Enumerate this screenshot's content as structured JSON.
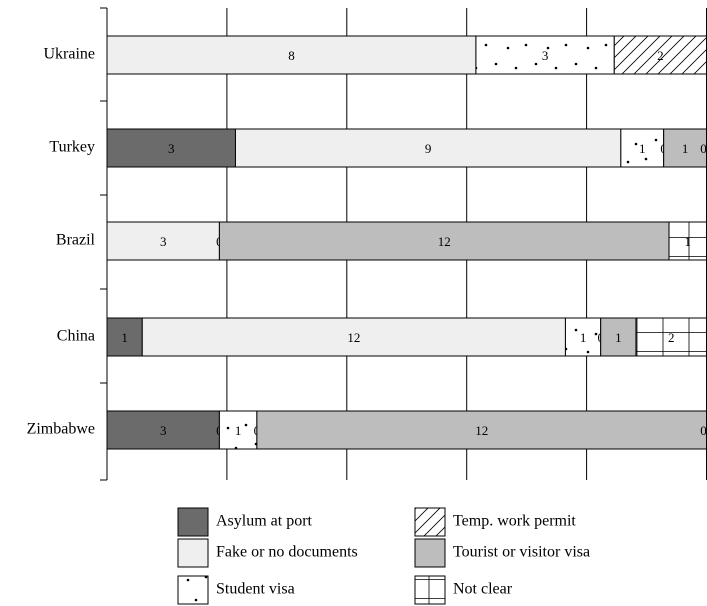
{
  "chart_data": {
    "type": "stacked_bar_horizontal_percent",
    "categories": [
      "Ukraine",
      "Turkey",
      "Brazil",
      "China",
      "Zimbabwe"
    ],
    "series": [
      {
        "name": "Asylum at port",
        "color": "#6b6b6b",
        "pattern": "solid",
        "values": [
          0,
          3,
          0,
          1,
          3
        ]
      },
      {
        "name": "Fake or no documents",
        "color": "#efefef",
        "pattern": "solid",
        "values": [
          8,
          9,
          3,
          12,
          0
        ]
      },
      {
        "name": "Student visa",
        "color": "#ffffff",
        "pattern": "dots",
        "values": [
          3,
          1,
          0,
          1,
          1
        ]
      },
      {
        "name": "Temp. work permit",
        "color": "#ffffff",
        "pattern": "hatch",
        "values": [
          2,
          0,
          null,
          0,
          0
        ]
      },
      {
        "name": "Tourist or visitor visa",
        "color": "#bdbdbd",
        "pattern": "solid",
        "values": [
          null,
          1,
          12,
          1,
          12
        ]
      },
      {
        "name": "Not clear",
        "color": "#ffffff",
        "pattern": "grid",
        "values": [
          null,
          0,
          1,
          2,
          0
        ]
      }
    ],
    "xlim": [
      0,
      100
    ],
    "xticks": [
      0,
      20,
      40,
      60,
      80,
      100
    ],
    "grid": true
  }
}
